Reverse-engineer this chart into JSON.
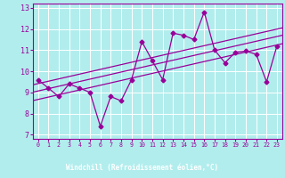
{
  "xlabel": "Windchill (Refroidissement éolien,°C)",
  "bg_color": "#b2eded",
  "line_color": "#990099",
  "xlabel_bg": "#660066",
  "xlabel_fg": "#ffffff",
  "grid_color": "#ffffff",
  "xlim": [
    -0.5,
    23.5
  ],
  "ylim": [
    6.8,
    13.2
  ],
  "yticks": [
    7,
    8,
    9,
    10,
    11,
    12,
    13
  ],
  "xticks": [
    0,
    1,
    2,
    3,
    4,
    5,
    6,
    7,
    8,
    9,
    10,
    11,
    12,
    13,
    14,
    15,
    16,
    17,
    18,
    19,
    20,
    21,
    22,
    23
  ],
  "x_data": [
    0,
    1,
    2,
    3,
    4,
    5,
    6,
    7,
    8,
    9,
    10,
    11,
    12,
    13,
    14,
    15,
    16,
    17,
    18,
    19,
    20,
    21,
    22,
    23
  ],
  "y_data": [
    9.6,
    9.2,
    8.8,
    9.4,
    9.2,
    9.0,
    7.4,
    8.8,
    8.6,
    9.6,
    11.4,
    10.5,
    9.6,
    11.8,
    11.7,
    11.5,
    12.8,
    11.0,
    10.4,
    10.9,
    10.95,
    10.8,
    9.5,
    11.2
  ],
  "reg_offsets": [
    0.55,
    0.2,
    -0.2
  ]
}
